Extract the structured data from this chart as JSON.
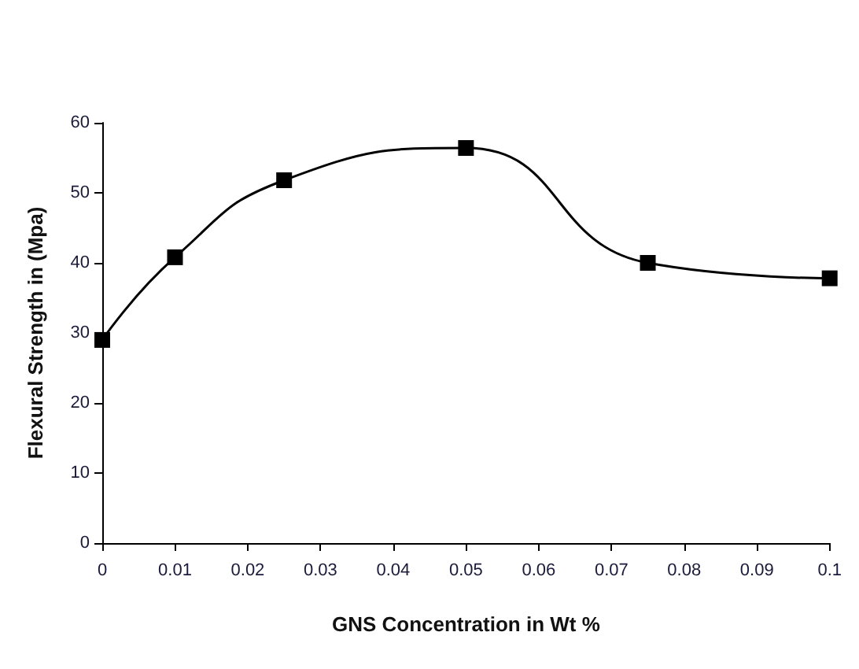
{
  "chart_data": {
    "type": "line",
    "xlabel": "GNS Concentration in Wt %",
    "ylabel": "Flexural Strength in (Mpa)",
    "x": [
      0,
      0.01,
      0.025,
      0.05,
      0.075,
      0.1
    ],
    "series": [
      {
        "color": "#000000",
        "values": [
          29,
          40.8,
          51.8,
          56.4,
          40,
          37.8
        ]
      }
    ],
    "xlim": [
      0,
      0.1
    ],
    "xticks": [
      0,
      0.01,
      0.02,
      0.03,
      0.04,
      0.05,
      0.06,
      0.07,
      0.08,
      0.09,
      0.1
    ],
    "ylim": [
      0,
      60
    ],
    "yticks": [
      0,
      10,
      20,
      30,
      40,
      50,
      60
    ],
    "grid": false,
    "marker": "square",
    "line_style": "solid"
  }
}
